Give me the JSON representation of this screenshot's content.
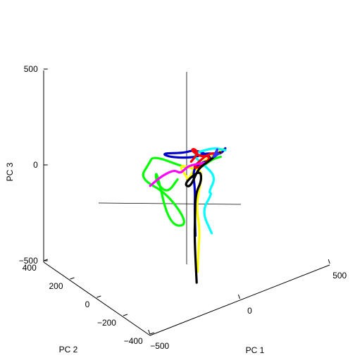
{
  "chart_data": {
    "type": "line",
    "subtype": "3d-trajectories",
    "title": "",
    "xlabel": "PC 1",
    "ylabel": "PC 2",
    "zlabel": "PC 3",
    "xlim": [
      -500,
      500
    ],
    "ylim": [
      -400,
      400
    ],
    "zlim": [
      -500,
      500
    ],
    "xticks": [
      "−500",
      "0",
      "500"
    ],
    "yticks": [
      "400",
      "200",
      "0",
      "−200",
      "−400"
    ],
    "zticks": [
      "500",
      "0",
      "−500"
    ],
    "grid": false,
    "legend": "none",
    "series": [
      {
        "color": "#00ff00",
        "points": [
          [
            -80,
            -40,
            -20
          ],
          [
            -130,
            -30,
            -80
          ],
          [
            -150,
            30,
            -40
          ],
          [
            -140,
            40,
            20
          ],
          [
            -120,
            -30,
            -250
          ],
          [
            -30,
            -60,
            -270
          ],
          [
            -60,
            60,
            -150
          ],
          [
            -180,
            110,
            -50
          ],
          [
            -210,
            0,
            90
          ],
          [
            -200,
            -20,
            140
          ],
          [
            -110,
            -140,
            100
          ],
          [
            -60,
            -110,
            70
          ],
          [
            -20,
            -80,
            30
          ],
          [
            40,
            -60,
            10
          ],
          [
            100,
            -60,
            30
          ],
          [
            160,
            -40,
            10
          ]
        ]
      },
      {
        "color": "#ffff00",
        "points": [
          [
            -50,
            -150,
            -460
          ],
          [
            -40,
            -140,
            -390
          ],
          [
            0,
            -100,
            -280
          ],
          [
            -20,
            -100,
            -160
          ],
          [
            -20,
            -120,
            -60
          ],
          [
            0,
            -120,
            30
          ],
          [
            -60,
            -120,
            70
          ],
          [
            -120,
            -100,
            100
          ],
          [
            -80,
            -120,
            20
          ],
          [
            -60,
            -90,
            -10
          ],
          [
            20,
            -40,
            10
          ],
          [
            100,
            -30,
            20
          ],
          [
            190,
            -20,
            30
          ]
        ]
      },
      {
        "color": "#0000cc",
        "points": [
          [
            -10,
            -80,
            -320
          ],
          [
            0,
            -60,
            -200
          ],
          [
            10,
            -50,
            -100
          ],
          [
            -10,
            -60,
            0
          ],
          [
            0,
            -80,
            50
          ],
          [
            60,
            -130,
            80
          ],
          [
            20,
            -40,
            100
          ],
          [
            -60,
            -60,
            120
          ],
          [
            -170,
            -40,
            150
          ],
          [
            -120,
            -40,
            110
          ],
          [
            10,
            -40,
            60
          ],
          [
            80,
            -40,
            60
          ],
          [
            150,
            -50,
            30
          ],
          [
            200,
            -20,
            30
          ]
        ]
      },
      {
        "color": "#00ffff",
        "points": [
          [
            80,
            -80,
            -340
          ],
          [
            40,
            -60,
            -220
          ],
          [
            90,
            -70,
            -140
          ],
          [
            40,
            -110,
            -100
          ],
          [
            90,
            -100,
            -40
          ],
          [
            60,
            -40,
            10
          ],
          [
            20,
            -10,
            60
          ],
          [
            110,
            -20,
            60
          ],
          [
            160,
            -10,
            40
          ],
          [
            200,
            -20,
            20
          ]
        ]
      },
      {
        "color": "#ff0000",
        "points": [
          [
            10,
            -20,
            30
          ],
          [
            50,
            -20,
            60
          ],
          [
            20,
            -30,
            100
          ],
          [
            -20,
            -60,
            120
          ],
          [
            10,
            -90,
            90
          ],
          [
            70,
            -60,
            60
          ],
          [
            100,
            -40,
            20
          ],
          [
            50,
            -30,
            -10
          ],
          [
            30,
            0,
            -20
          ],
          [
            110,
            -10,
            30
          ],
          [
            160,
            -20,
            20
          ],
          [
            180,
            -10,
            10
          ]
        ]
      },
      {
        "color": "#ff00ff",
        "points": [
          [
            -210,
            -10,
            -20
          ],
          [
            -170,
            -40,
            30
          ],
          [
            -120,
            -70,
            60
          ],
          [
            -80,
            -60,
            20
          ],
          [
            -40,
            -50,
            30
          ],
          [
            0,
            -30,
            20
          ],
          [
            60,
            -50,
            20
          ]
        ]
      },
      {
        "color": "#000000",
        "points": [
          [
            -70,
            -170,
            -500
          ],
          [
            -30,
            -100,
            -320
          ],
          [
            -20,
            -90,
            -220
          ],
          [
            -10,
            -80,
            -100
          ],
          [
            10,
            -100,
            -30
          ],
          [
            30,
            -60,
            0
          ],
          [
            -60,
            -60,
            -40
          ],
          [
            -40,
            -80,
            -60
          ],
          [
            20,
            -60,
            10
          ],
          [
            90,
            -40,
            10
          ],
          [
            170,
            -20,
            20
          ]
        ]
      },
      {
        "color": "#3333ff",
        "points": [
          [
            150,
            -10,
            0
          ],
          [
            190,
            20,
            20
          ],
          [
            160,
            10,
            -10
          ],
          [
            130,
            -20,
            10
          ],
          [
            150,
            -40,
            30
          ]
        ]
      }
    ]
  }
}
